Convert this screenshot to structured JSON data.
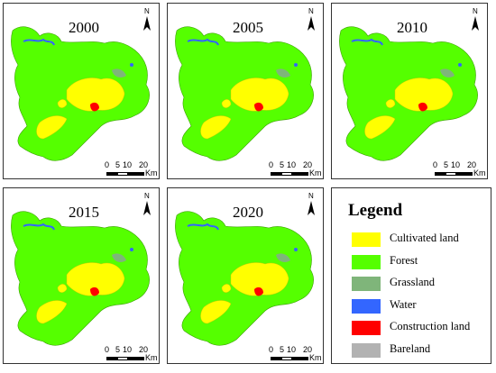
{
  "panels": [
    {
      "year": "2000",
      "north": "N",
      "scale_ticks": [
        "0",
        "5",
        "10",
        "20"
      ],
      "scale_unit": "Km"
    },
    {
      "year": "2005",
      "north": "N",
      "scale_ticks": [
        "0",
        "5",
        "10",
        "20"
      ],
      "scale_unit": "Km"
    },
    {
      "year": "2010",
      "north": "N",
      "scale_ticks": [
        "0",
        "5",
        "10",
        "20"
      ],
      "scale_unit": "Km"
    },
    {
      "year": "2015",
      "north": "N",
      "scale_ticks": [
        "0",
        "5",
        "10",
        "20"
      ],
      "scale_unit": "Km"
    },
    {
      "year": "2020",
      "north": "N",
      "scale_ticks": [
        "0",
        "5",
        "10",
        "20"
      ],
      "scale_unit": "Km"
    }
  ],
  "legend": {
    "title": "Legend",
    "items": [
      {
        "label": "Cultivated land",
        "color": "#ffff00"
      },
      {
        "label": "Forest",
        "color": "#55ff00"
      },
      {
        "label": "Grassland",
        "color": "#7fb57a"
      },
      {
        "label": "Water",
        "color": "#3366ff"
      },
      {
        "label": "Construction land",
        "color": "#ff0000"
      },
      {
        "label": "Bareland",
        "color": "#b2b2b2"
      }
    ]
  }
}
